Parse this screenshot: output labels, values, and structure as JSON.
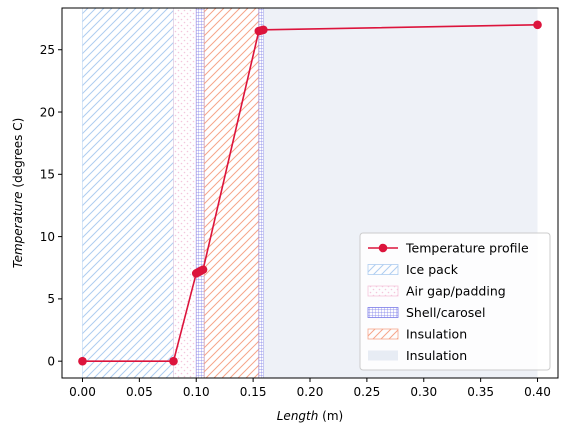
{
  "chart_data": {
    "type": "line",
    "xlabel_main": "Length",
    "xlabel_unit": " (m)",
    "ylabel_main": "Temperature",
    "ylabel_unit": " (degrees C)",
    "xlim": [
      -0.018,
      0.418
    ],
    "ylim": [
      -1.35,
      28.35
    ],
    "x_ticks": [
      0.0,
      0.05,
      0.1,
      0.15,
      0.2,
      0.25,
      0.3,
      0.35,
      0.4
    ],
    "x_tick_labels": [
      "0.00",
      "0.05",
      "0.10",
      "0.15",
      "0.20",
      "0.25",
      "0.30",
      "0.35",
      "0.40"
    ],
    "y_ticks": [
      0,
      5,
      10,
      15,
      20,
      25
    ],
    "y_tick_labels": [
      "0",
      "5",
      "10",
      "15",
      "20",
      "25"
    ],
    "grid": false,
    "legend_position": "lower-right",
    "series": [
      {
        "name": "Temperature profile",
        "color": "#dc143c",
        "marker": "circle",
        "x": [
          0.0,
          0.08,
          0.1,
          0.102,
          0.104,
          0.106,
          0.155,
          0.157,
          0.159,
          0.4
        ],
        "y": [
          0.0,
          0.0,
          7.05,
          7.15,
          7.25,
          7.35,
          26.5,
          26.55,
          26.6,
          27.0
        ]
      }
    ],
    "regions": [
      {
        "name": "Ice pack",
        "x0": 0.0,
        "x1": 0.08,
        "color": "#aecdf0",
        "hatch": "diagonal"
      },
      {
        "name": "Air gap/padding",
        "x0": 0.08,
        "x1": 0.1,
        "color": "#f4c6dc",
        "hatch": "dots"
      },
      {
        "name": "Shell/carosel",
        "x0": 0.1,
        "x1": 0.107,
        "color": "#7a7ae8",
        "hatch": "grid"
      },
      {
        "name": "Insulation",
        "x0": 0.107,
        "x1": 0.155,
        "color": "#f6a58a",
        "hatch": "diagonal"
      },
      {
        "name": "Shell/carosel",
        "x0": 0.155,
        "x1": 0.159,
        "color": "#7a7ae8",
        "hatch": "grid",
        "in_legend": false
      },
      {
        "name": "Insulation",
        "x0": 0.159,
        "x1": 0.4,
        "color": "#dde4f0",
        "hatch": "none"
      }
    ]
  }
}
